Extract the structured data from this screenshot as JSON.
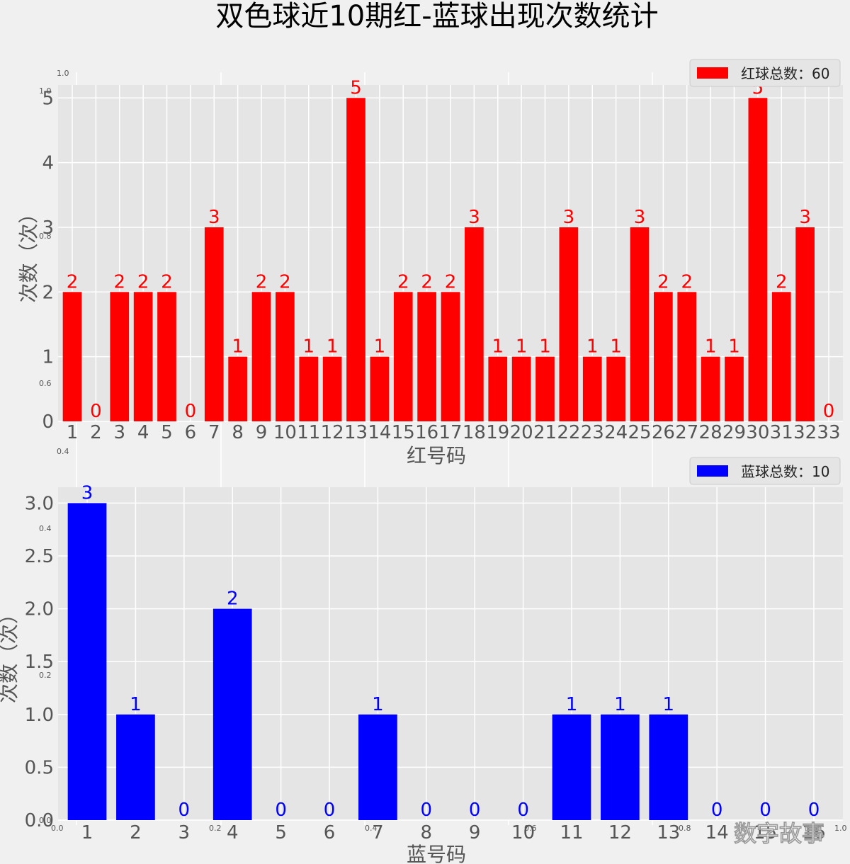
{
  "title": "双色球近10期红-蓝球出现次数统计",
  "watermark": "数字故事",
  "bg_axes_ticks": {
    "top_left": "1.0",
    "top_left2": "1.0",
    "mid_left1": "0.6",
    "mid_left2": "0.4",
    "mid_left3": "0.4",
    "mid_left4": "0.2",
    "upper_y_stray": "0.8",
    "bottom_row": [
      "0.0",
      "0.2",
      "0.4",
      "0.6",
      "0.8",
      "1.0"
    ],
    "bottom_left": "0.0"
  },
  "colors": {
    "red": "#ff0000",
    "blue": "#0000ff",
    "axes_bg": "#e5e5e5",
    "fig_bg": "#f0f0f0",
    "grid": "#ffffff"
  },
  "chart_data": [
    {
      "type": "bar",
      "xlabel": "红号码",
      "ylabel": "次数（次）",
      "legend": "红球总数：60",
      "legend_position": "top-right",
      "ylim": [
        0,
        5.2
      ],
      "yticks": [
        "0",
        "1",
        "2",
        "3",
        "4",
        "5"
      ],
      "categories": [
        "1",
        "2",
        "3",
        "4",
        "5",
        "6",
        "7",
        "8",
        "9",
        "10",
        "11",
        "12",
        "13",
        "14",
        "15",
        "16",
        "17",
        "18",
        "19",
        "20",
        "21",
        "22",
        "23",
        "24",
        "25",
        "26",
        "27",
        "28",
        "29",
        "30",
        "31",
        "32",
        "33"
      ],
      "values": [
        2,
        0,
        2,
        2,
        2,
        0,
        3,
        1,
        2,
        2,
        1,
        1,
        5,
        1,
        2,
        2,
        2,
        3,
        1,
        1,
        1,
        3,
        1,
        1,
        3,
        2,
        2,
        1,
        1,
        5,
        2,
        3,
        0
      ],
      "color": "#ff0000"
    },
    {
      "type": "bar",
      "xlabel": "蓝号码",
      "ylabel": "次数（次）",
      "legend": "蓝球总数：10",
      "legend_position": "top-right",
      "ylim": [
        0,
        3.15
      ],
      "yticks": [
        "0.0",
        "0.5",
        "1.0",
        "1.5",
        "2.0",
        "2.5",
        "3.0"
      ],
      "categories": [
        "1",
        "2",
        "3",
        "4",
        "5",
        "6",
        "7",
        "8",
        "9",
        "10",
        "11",
        "12",
        "13",
        "14",
        "15",
        "16"
      ],
      "values": [
        3,
        1,
        0,
        2,
        0,
        0,
        1,
        0,
        0,
        0,
        1,
        1,
        1,
        0,
        0,
        0
      ],
      "color": "#0000ff"
    }
  ]
}
